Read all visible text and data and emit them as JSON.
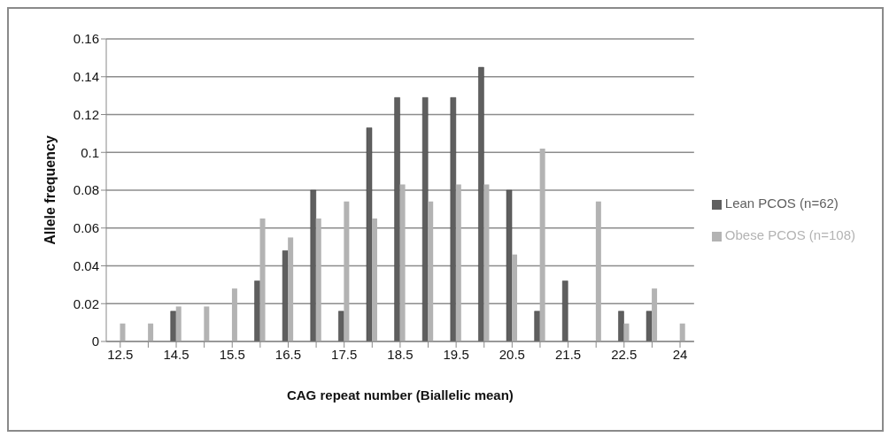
{
  "chart_data": {
    "type": "bar",
    "xlabel": "CAG repeat number (Biallelic mean)",
    "ylabel": "Allele frequency",
    "categories": [
      "12.5",
      null,
      "14.5",
      null,
      "15.5",
      null,
      "16.5",
      null,
      "17.5",
      null,
      "18.5",
      null,
      "19.5",
      null,
      "20.5",
      null,
      "21.5",
      null,
      "22.5",
      null,
      "24"
    ],
    "series": [
      {
        "name": "Lean PCOS (n=62)",
        "color": "#5f5f5f",
        "values": [
          null,
          null,
          0.016,
          null,
          null,
          0.032,
          0.048,
          0.08,
          0.016,
          0.113,
          0.129,
          0.129,
          0.129,
          0.145,
          0.08,
          0.016,
          0.032,
          null,
          0.016,
          0.016,
          null
        ]
      },
      {
        "name": "Obese PCOS (n=108)",
        "color": "#b3b3b3",
        "values": [
          0.0095,
          0.0095,
          0.0185,
          0.0185,
          0.028,
          0.065,
          0.055,
          0.065,
          0.074,
          0.065,
          0.083,
          0.074,
          0.083,
          0.083,
          0.046,
          0.102,
          null,
          0.074,
          0.0095,
          0.028,
          0.0095
        ]
      }
    ],
    "ylim": [
      0,
      0.16
    ],
    "yticks": [
      0,
      0.02,
      0.04,
      0.06,
      0.08,
      0.1,
      0.12,
      0.14,
      0.16
    ],
    "grid": "y",
    "legend": "right"
  }
}
